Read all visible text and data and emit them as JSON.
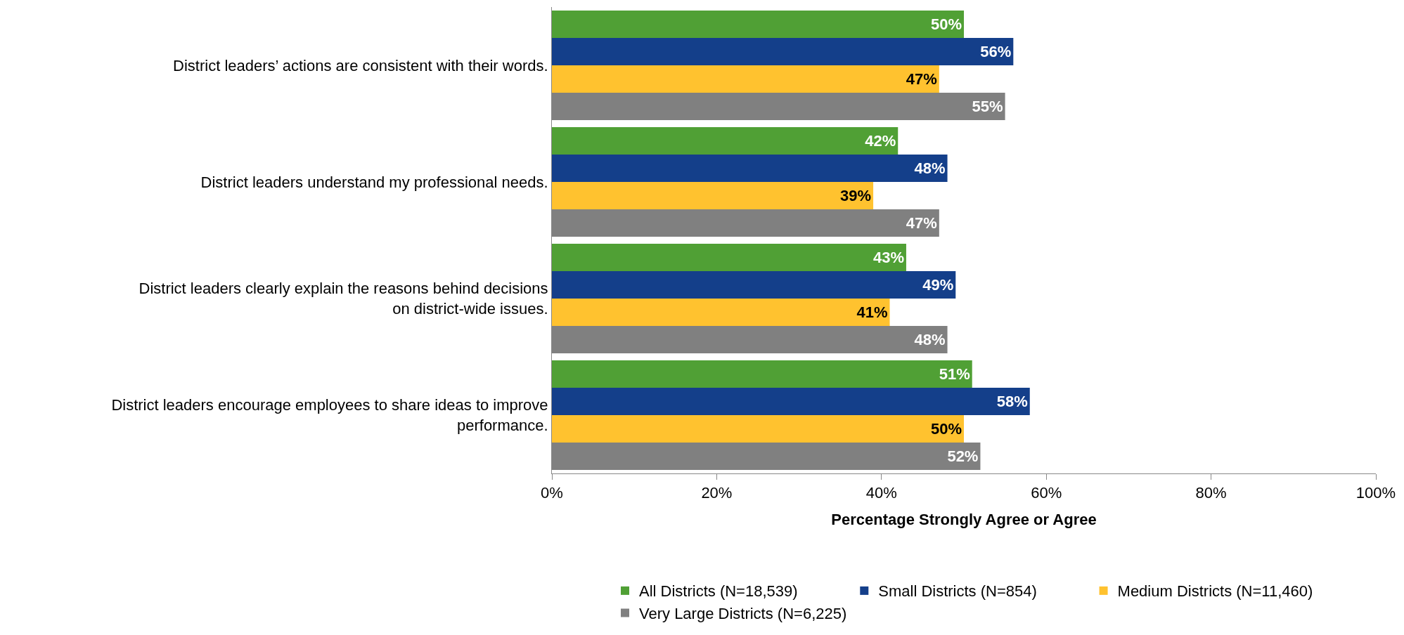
{
  "chart_data": {
    "type": "bar",
    "orientation": "horizontal",
    "xlabel": "Percentage Strongly Agree or Agree",
    "categories": [
      "District leaders’ actions are consistent with their words.",
      "District leaders understand my professional needs.",
      "District leaders clearly explain the reasons behind decisions on district-wide issues.",
      "District leaders encourage employees to share ideas to improve performance."
    ],
    "series": [
      {
        "name": "All Districts (N=18,539)",
        "color": "#50a035",
        "values": [
          50,
          42,
          43,
          51
        ],
        "value_labels": [
          "50%",
          "42%",
          "43%",
          "51%"
        ]
      },
      {
        "name": "Small Districts (N=854)",
        "color": "#143f8a",
        "values": [
          56,
          48,
          49,
          58
        ],
        "value_labels": [
          "56%",
          "48%",
          "49%",
          "58%"
        ]
      },
      {
        "name": "Medium Districts (N=11,460)",
        "color": "#ffc22f",
        "values": [
          47,
          39,
          41,
          50
        ],
        "value_labels": [
          "47%",
          "39%",
          "41%",
          "50%"
        ]
      },
      {
        "name": "Very Large Districts (N=6,225)",
        "color": "#808080",
        "values": [
          55,
          47,
          48,
          52
        ],
        "value_labels": [
          "55%",
          "47%",
          "48%",
          "52%"
        ]
      }
    ],
    "xlim": [
      0,
      100
    ],
    "xticks": [
      {
        "value": 0,
        "label": "0%"
      },
      {
        "value": 20,
        "label": "20%"
      },
      {
        "value": 40,
        "label": "40%"
      },
      {
        "value": 60,
        "label": "60%"
      },
      {
        "value": 80,
        "label": "80%"
      },
      {
        "value": 100,
        "label": "100%"
      }
    ],
    "grid": false,
    "legend": "bottom"
  }
}
